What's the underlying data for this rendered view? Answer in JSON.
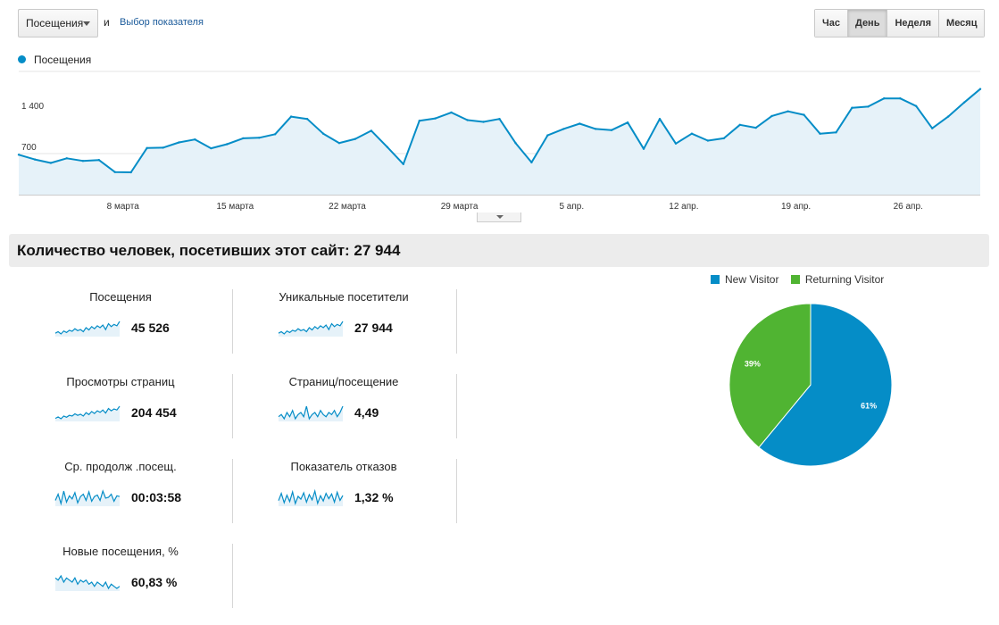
{
  "controls": {
    "metric_select": "Посещения",
    "and_text": "и",
    "choose_metric_link": "Выбор показателя",
    "periods": [
      "Час",
      "День",
      "Неделя",
      "Месяц"
    ],
    "active_period": "День"
  },
  "colors": {
    "accent": "#058dc7",
    "new_visitor": "#058dc7",
    "returning_visitor": "#50b432"
  },
  "summary_title": "Количество человек, посетивших этот сайт: 27 944",
  "stats": [
    {
      "label": "Посещения",
      "value": "45 526"
    },
    {
      "label": "Уникальные посетители",
      "value": "27 944"
    },
    {
      "label": "Просмотры страниц",
      "value": "204 454"
    },
    {
      "label": "Страниц/посещение",
      "value": "4,49"
    },
    {
      "label": "Ср. продолж .посещ.",
      "value": "00:03:58"
    },
    {
      "label": "Показатель отказов",
      "value": "1,32 %"
    },
    {
      "label": "Новые посещения, %",
      "value": "60,83 %"
    }
  ],
  "chart_data": [
    {
      "type": "area",
      "series": [
        {
          "name": "Посещения",
          "values": [
            680,
            600,
            540,
            620,
            575,
            590,
            385,
            380,
            795,
            800,
            890,
            940,
            790,
            860,
            960,
            970,
            1030,
            1330,
            1290,
            1040,
            880,
            950,
            1090,
            810,
            520,
            1260,
            1300,
            1400,
            1270,
            1240,
            1290,
            880,
            550,
            1010,
            1120,
            1210,
            1120,
            1100,
            1230,
            780,
            1290,
            870,
            1040,
            920,
            960,
            1190,
            1140,
            1340,
            1420,
            1360,
            1040,
            1060,
            1480,
            1500,
            1640,
            1640,
            1510,
            1130,
            1330,
            1570,
            1800
          ]
        }
      ],
      "x_tick_labels": [
        "8 марта",
        "15 марта",
        "22 марта",
        "29 марта",
        "5 апр.",
        "12 апр.",
        "19 апр.",
        "26 апр."
      ],
      "y_tick_labels": [
        "1 400",
        "700"
      ],
      "ylim": [
        0,
        2100
      ],
      "grid": true,
      "legend": "top-left"
    },
    {
      "type": "pie",
      "labels": [
        "New Visitor",
        "Returning Visitor"
      ],
      "values": [
        61,
        39
      ],
      "slice_labels": [
        "61%",
        "39%"
      ],
      "legend": "top"
    }
  ],
  "sparklines": [
    [
      40,
      44,
      38,
      46,
      42,
      48,
      45,
      52,
      47,
      50,
      44,
      55,
      49,
      58,
      52,
      60,
      55,
      62,
      50,
      66,
      58,
      64,
      60,
      72
    ],
    [
      40,
      44,
      38,
      46,
      42,
      48,
      45,
      52,
      47,
      50,
      44,
      55,
      49,
      58,
      52,
      60,
      55,
      62,
      50,
      66,
      58,
      64,
      60,
      72
    ],
    [
      38,
      42,
      37,
      44,
      41,
      46,
      44,
      50,
      46,
      49,
      44,
      53,
      48,
      56,
      51,
      58,
      54,
      60,
      52,
      64,
      58,
      63,
      60,
      70
    ],
    [
      55,
      56,
      54,
      57,
      55,
      58,
      54,
      56,
      57,
      55,
      60,
      54,
      56,
      57,
      55,
      58,
      56,
      55,
      57,
      56,
      58,
      55,
      57,
      60
    ],
    [
      50,
      58,
      46,
      62,
      48,
      56,
      52,
      60,
      47,
      55,
      58,
      50,
      61,
      49,
      55,
      57,
      50,
      62,
      53,
      54,
      58,
      49,
      56,
      55
    ],
    [
      45,
      70,
      38,
      64,
      42,
      75,
      35,
      60,
      50,
      72,
      40,
      66,
      48,
      78,
      36,
      62,
      44,
      70,
      52,
      68,
      40,
      74,
      46,
      63
    ],
    [
      62,
      61,
      63,
      60,
      62,
      61,
      60,
      62,
      59,
      61,
      60,
      61,
      59,
      60,
      58,
      60,
      59,
      58,
      60,
      57,
      59,
      58,
      57,
      58
    ]
  ]
}
